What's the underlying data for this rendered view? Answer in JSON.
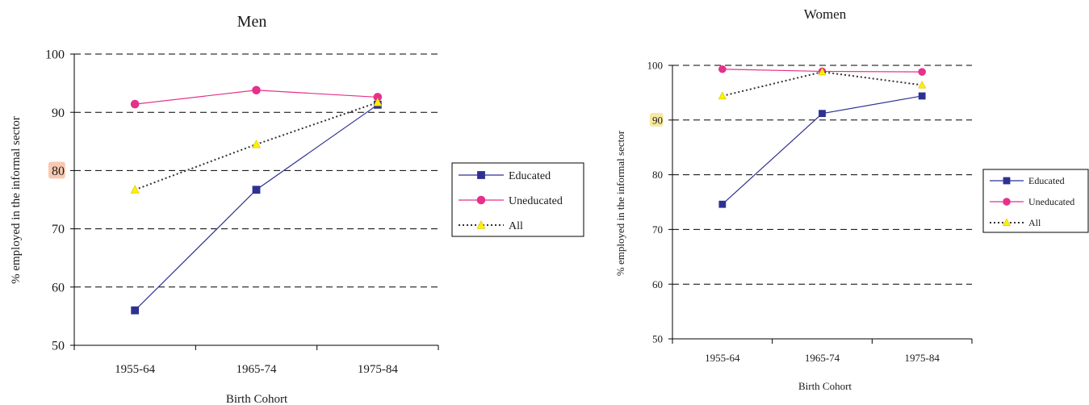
{
  "chart_data": [
    {
      "type": "line",
      "title": "Men",
      "xlabel": "Birth Cohort",
      "ylabel": "% employed in the informal sector",
      "categories": [
        "1955-64",
        "1965-74",
        "1975-84"
      ],
      "ylim": [
        50,
        100
      ],
      "yticks": [
        50,
        60,
        70,
        80,
        90,
        100
      ],
      "highlighted_tick": 80,
      "highlight_color": "#f8c9b0",
      "grid": "dashed horizontal",
      "legend_position": "right",
      "series": [
        {
          "name": "Educated",
          "values": [
            56,
            76.7,
            91.3
          ],
          "color": "#2e3192",
          "marker": "square",
          "line_style": "solid"
        },
        {
          "name": "Uneducated",
          "values": [
            91.4,
            93.8,
            92.6
          ],
          "color": "#e5318a",
          "marker": "circle",
          "line_style": "solid"
        },
        {
          "name": "All",
          "values": [
            76.7,
            84.5,
            91.7
          ],
          "color": "#333333",
          "marker_color": "#ffef00",
          "marker": "triangle",
          "line_style": "dotted"
        }
      ]
    },
    {
      "type": "line",
      "title": "Women",
      "xlabel": "Birth Cohort",
      "ylabel": "% employed in the informal sector",
      "categories": [
        "1955-64",
        "1965-74",
        "1975-84"
      ],
      "ylim": [
        50,
        100
      ],
      "yticks": [
        50,
        60,
        70,
        80,
        90,
        100
      ],
      "highlighted_tick": 90,
      "highlight_color": "#f7eaa0",
      "grid": "dashed horizontal",
      "legend_position": "right",
      "series": [
        {
          "name": "Educated",
          "values": [
            74.6,
            91.2,
            94.4
          ],
          "color": "#2e3192",
          "marker": "square",
          "line_style": "solid"
        },
        {
          "name": "Uneducated",
          "values": [
            99.3,
            98.9,
            98.8
          ],
          "color": "#e5318a",
          "marker": "circle",
          "line_style": "solid"
        },
        {
          "name": "All",
          "values": [
            94.4,
            98.8,
            96.4
          ],
          "color": "#333333",
          "marker_color": "#ffef00",
          "marker": "triangle",
          "line_style": "dotted"
        }
      ]
    }
  ]
}
